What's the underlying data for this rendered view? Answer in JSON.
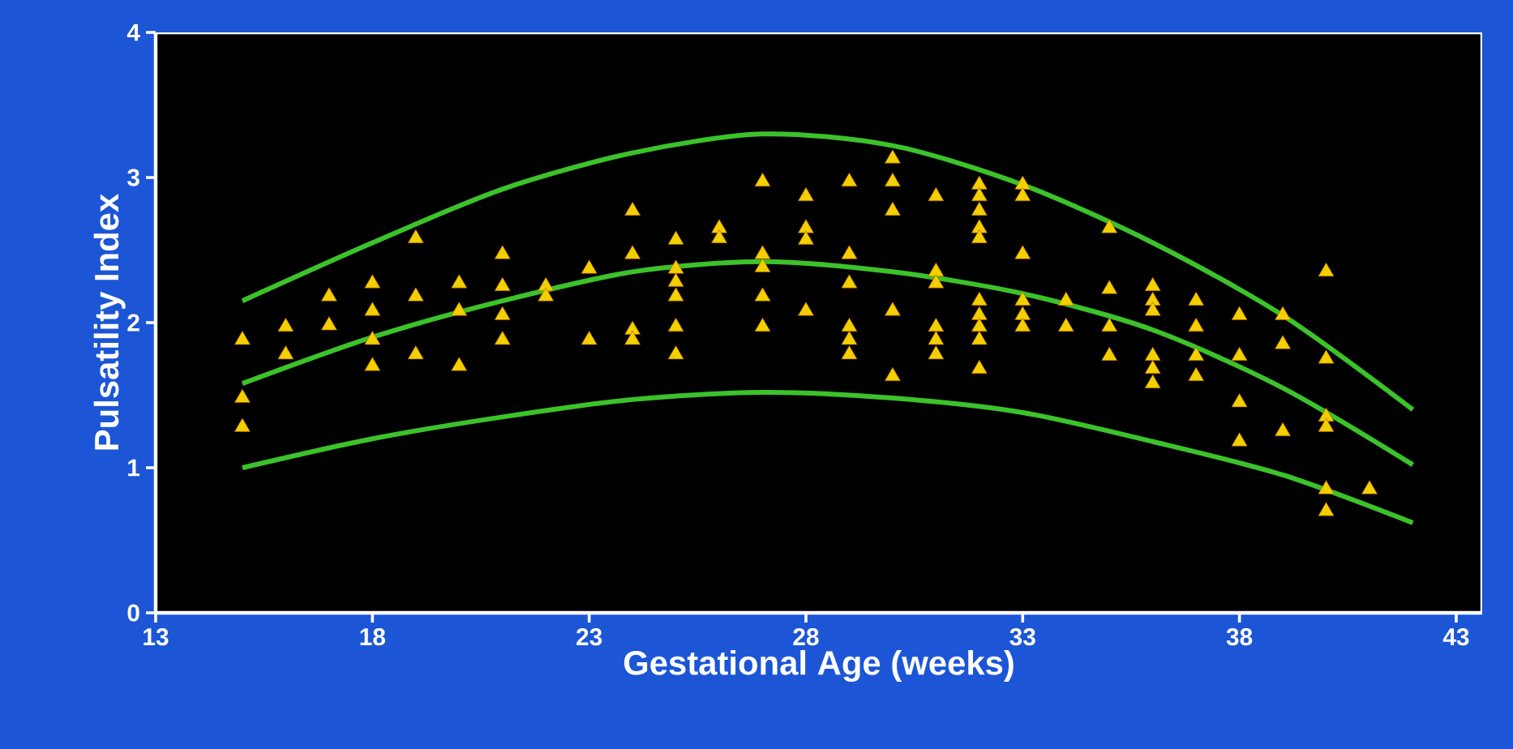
{
  "chart_data": {
    "type": "scatter",
    "xlabel": "Gestational Age (weeks)",
    "ylabel": "Pulsatility Index",
    "xlim": [
      13,
      43.6
    ],
    "ylim": [
      0,
      4
    ],
    "xticks": [
      13,
      18,
      23,
      28,
      33,
      38,
      43
    ],
    "yticks": [
      0,
      1,
      2,
      3,
      4
    ],
    "marker": "triangle",
    "series": [
      {
        "color": "#f2d000",
        "x": [
          15,
          15,
          15,
          16,
          16,
          17,
          17,
          18,
          18,
          18,
          18,
          19,
          19,
          19,
          20,
          20,
          20,
          21,
          21,
          21,
          21,
          22,
          22,
          23,
          23,
          24,
          24,
          24,
          24,
          25,
          25,
          25,
          25,
          25,
          25,
          26,
          26,
          27,
          27,
          27,
          27,
          27,
          28,
          28,
          28,
          28,
          29,
          29,
          29,
          29,
          29,
          29,
          30,
          30,
          30,
          30,
          30,
          31,
          31,
          31,
          31,
          31,
          31,
          32,
          32,
          32,
          32,
          32,
          32,
          32,
          32,
          32,
          32,
          33,
          33,
          33,
          33,
          33,
          33,
          34,
          34,
          35,
          35,
          35,
          35,
          36,
          36,
          36,
          36,
          36,
          36,
          37,
          37,
          37,
          37,
          38,
          38,
          38,
          38,
          39,
          39,
          39,
          40,
          40,
          40,
          40,
          40,
          40,
          41
        ],
        "values": [
          1.88,
          1.48,
          1.28,
          1.97,
          1.78,
          2.18,
          1.98,
          2.27,
          2.08,
          1.88,
          1.7,
          2.58,
          2.18,
          1.78,
          2.27,
          2.08,
          1.7,
          2.47,
          2.25,
          2.05,
          1.88,
          2.25,
          2.18,
          2.37,
          1.88,
          2.77,
          2.47,
          1.95,
          1.88,
          2.57,
          2.37,
          2.28,
          2.18,
          1.97,
          1.78,
          2.65,
          2.58,
          2.97,
          2.47,
          2.38,
          2.18,
          1.97,
          2.87,
          2.65,
          2.57,
          2.08,
          2.97,
          2.47,
          2.27,
          1.97,
          1.88,
          1.78,
          3.13,
          2.97,
          2.77,
          2.08,
          1.63,
          2.87,
          2.35,
          2.27,
          1.97,
          1.88,
          1.78,
          2.95,
          2.87,
          2.77,
          2.65,
          2.58,
          2.15,
          2.05,
          1.97,
          1.88,
          1.68,
          2.95,
          2.87,
          2.47,
          2.15,
          2.05,
          1.97,
          2.15,
          1.97,
          2.65,
          2.23,
          1.97,
          1.77,
          2.25,
          2.15,
          2.08,
          1.77,
          1.68,
          1.58,
          2.15,
          1.97,
          1.77,
          1.63,
          2.05,
          1.77,
          1.45,
          1.18,
          2.05,
          1.85,
          1.25,
          2.35,
          1.75,
          1.35,
          1.28,
          0.85,
          0.7,
          0.85
        ]
      },
      {
        "type": "line",
        "marker": "none",
        "color": "#3cc22a",
        "x": [
          15,
          18,
          21,
          24,
          27,
          30,
          33,
          36,
          39,
          42
        ],
        "values": [
          2.15,
          2.55,
          2.92,
          3.17,
          3.3,
          3.22,
          2.95,
          2.55,
          2.05,
          1.4
        ]
      },
      {
        "type": "line",
        "marker": "none",
        "color": "#3cc22a",
        "x": [
          15,
          18,
          21,
          24,
          27,
          30,
          33,
          36,
          39,
          42
        ],
        "values": [
          1.58,
          1.9,
          2.15,
          2.35,
          2.42,
          2.35,
          2.2,
          1.95,
          1.55,
          1.02
        ]
      },
      {
        "type": "line",
        "marker": "none",
        "color": "#3cc22a",
        "x": [
          15,
          18,
          21,
          24,
          27,
          30,
          33,
          36,
          39,
          42
        ],
        "values": [
          1.0,
          1.2,
          1.35,
          1.47,
          1.52,
          1.48,
          1.38,
          1.18,
          0.95,
          0.62
        ]
      }
    ]
  }
}
